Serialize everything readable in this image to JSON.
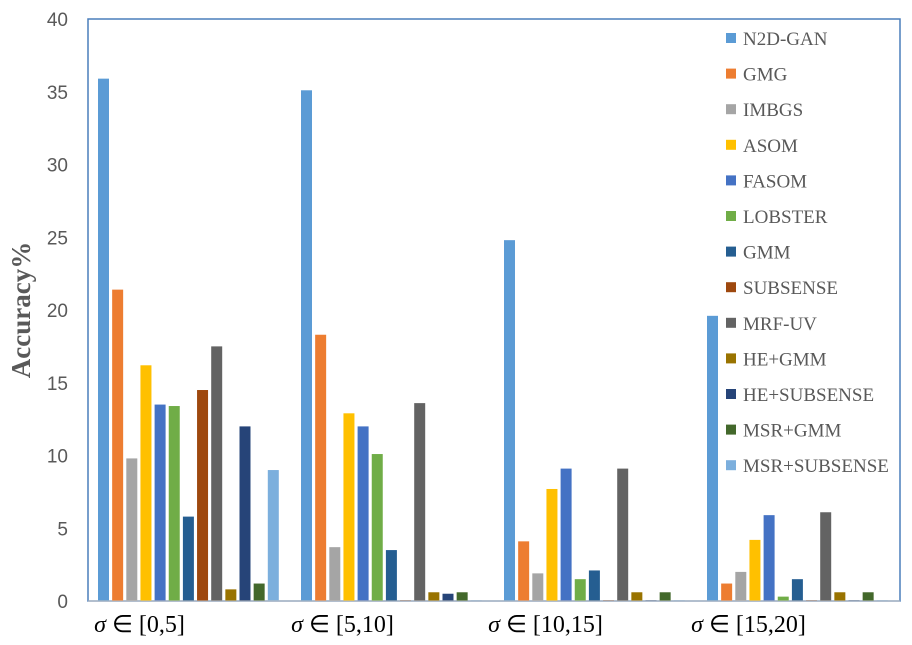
{
  "chart_data": {
    "type": "bar",
    "title": "",
    "ylabel": "Accuracy%",
    "xlabel": "",
    "ylim": [
      0,
      40
    ],
    "yticks": [
      0,
      5,
      10,
      15,
      20,
      25,
      30,
      35,
      40
    ],
    "categories": [
      {
        "sym": "σ",
        "rel": " ∈ ",
        "range": "[0,5]"
      },
      {
        "sym": "σ",
        "rel": " ∈ ",
        "range": "[5,10]"
      },
      {
        "sym": "σ",
        "rel": " ∈ ",
        "range": "[10,15]"
      },
      {
        "sym": "σ",
        "rel": " ∈ ",
        "range": "[15,20]"
      }
    ],
    "legend_position": "top-right",
    "grid": false,
    "series": [
      {
        "name": "N2D-GAN",
        "color": "#5B9BD5",
        "values": [
          35.9,
          35.1,
          24.8,
          19.6
        ]
      },
      {
        "name": "GMG",
        "color": "#ED7D31",
        "values": [
          21.4,
          18.3,
          4.1,
          1.2
        ]
      },
      {
        "name": "IMBGS",
        "color": "#A5A5A5",
        "values": [
          9.8,
          3.7,
          1.9,
          2.0
        ]
      },
      {
        "name": "ASOM",
        "color": "#FFC000",
        "values": [
          16.2,
          12.9,
          7.7,
          4.2
        ]
      },
      {
        "name": "FASOM",
        "color": "#4472C4",
        "values": [
          13.5,
          12.0,
          9.1,
          5.9
        ]
      },
      {
        "name": "LOBSTER",
        "color": "#70AD47",
        "values": [
          13.4,
          10.1,
          1.5,
          0.3
        ]
      },
      {
        "name": "GMM",
        "color": "#255E91",
        "values": [
          5.8,
          3.5,
          2.1,
          1.5
        ]
      },
      {
        "name": "SUBSENSE",
        "color": "#9E480E",
        "values": [
          14.5,
          0.05,
          0.05,
          0.05
        ]
      },
      {
        "name": "MRF-UV",
        "color": "#636363",
        "values": [
          17.5,
          13.6,
          9.1,
          6.1
        ]
      },
      {
        "name": "HE+GMM",
        "color": "#997300",
        "values": [
          0.8,
          0.6,
          0.6,
          0.6
        ]
      },
      {
        "name": "HE+SUBSENSE",
        "color": "#264478",
        "values": [
          12.0,
          0.5,
          0.05,
          0.05
        ]
      },
      {
        "name": "MSR+GMM",
        "color": "#43682B",
        "values": [
          1.2,
          0.6,
          0.6,
          0.6
        ]
      },
      {
        "name": "MSR+SUBSENSE",
        "color": "#7CAFDD",
        "values": [
          9.0,
          0.05,
          0.05,
          0.05
        ]
      }
    ]
  }
}
